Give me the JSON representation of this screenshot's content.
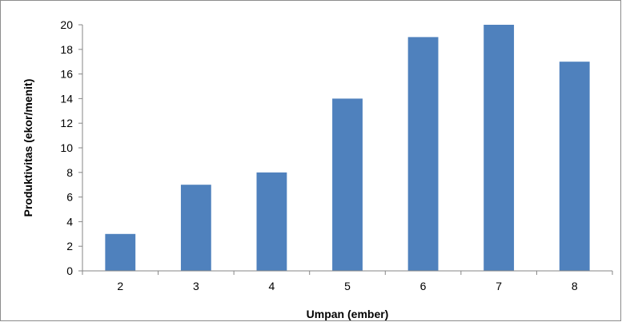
{
  "chart_data": {
    "type": "bar",
    "title": "",
    "xlabel": "Umpan (ember)",
    "ylabel": "Produktivitas (ekor/menit)",
    "categories": [
      "2",
      "3",
      "4",
      "5",
      "6",
      "7",
      "8"
    ],
    "values": [
      3,
      7,
      8,
      14,
      19,
      20,
      17
    ],
    "ylim": [
      0,
      20
    ],
    "yticks": [
      0,
      2,
      4,
      6,
      8,
      10,
      12,
      14,
      16,
      18,
      20
    ],
    "grid": false,
    "legend": "none",
    "bar_color": "#4f81bd",
    "axis_color": "#868686"
  }
}
